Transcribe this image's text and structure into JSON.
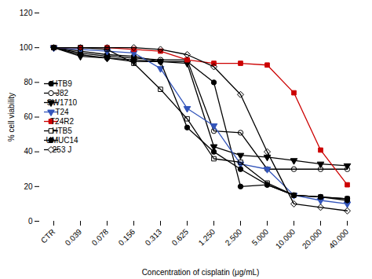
{
  "chart_data": {
    "type": "line",
    "xlabel": "Concentration of cisplatin (μg/mL)",
    "ylabel": "% cell viability",
    "categories": [
      "CTR",
      "0.039",
      "0.078",
      "0.156",
      "0.313",
      "0.625",
      "1.250",
      "2.500",
      "5.000",
      "10.000",
      "20.000",
      "40.000"
    ],
    "series": [
      {
        "name": "HTB9",
        "color": "#000000",
        "marker": "circle",
        "values": [
          100,
          98,
          96,
          95,
          92,
          92,
          80,
          20,
          21,
          15,
          14,
          13
        ]
      },
      {
        "name": "J82",
        "color": "#000000",
        "marker": "circle_open",
        "values": [
          100,
          97,
          95,
          94,
          93,
          93,
          52,
          51,
          30,
          30,
          30,
          30
        ]
      },
      {
        "name": "SW1710",
        "color": "#000000",
        "marker": "triangle_down",
        "values": [
          100,
          95,
          94,
          92,
          92,
          91,
          43,
          38,
          37,
          35,
          33,
          32
        ]
      },
      {
        "name": "T24",
        "color": "#3355bb",
        "marker": "triangle_down",
        "values": [
          100,
          99,
          98,
          97,
          88,
          65,
          55,
          33,
          30,
          15,
          12,
          10
        ]
      },
      {
        "name": "T24R2",
        "color": "#cc0000",
        "marker": "square",
        "values": [
          100,
          100,
          100,
          99,
          98,
          93,
          91,
          91,
          90,
          74,
          41,
          21
        ]
      },
      {
        "name": "HTB5",
        "color": "#000000",
        "marker": "square_open",
        "values": [
          100,
          100,
          99,
          91,
          76,
          59,
          36,
          34,
          22,
          15,
          14,
          13
        ]
      },
      {
        "name": "UMUC14",
        "color": "#000000",
        "marker": "circle",
        "values": [
          100,
          96,
          94,
          93,
          92,
          54,
          40,
          30,
          21,
          15,
          14,
          12
        ]
      },
      {
        "name": "253 J",
        "color": "#000000",
        "marker": "diamond_open",
        "values": [
          100,
          100,
          100,
          100,
          99,
          96,
          89,
          73,
          40,
          10,
          8,
          6
        ]
      }
    ],
    "ylim": [
      0,
      120
    ],
    "yticks": [
      0,
      20,
      40,
      60,
      80,
      100,
      120
    ],
    "grid": false,
    "legend": "center left"
  }
}
